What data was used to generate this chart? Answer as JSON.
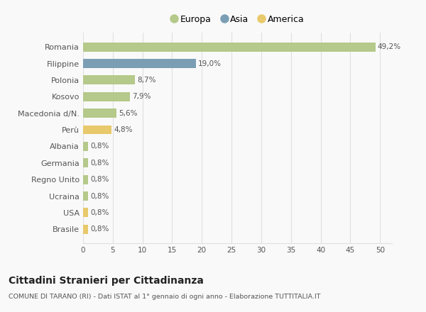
{
  "categories": [
    "Romania",
    "Filippine",
    "Polonia",
    "Kosovo",
    "Macedonia d/N.",
    "Perù",
    "Albania",
    "Germania",
    "Regno Unito",
    "Ucraina",
    "USA",
    "Brasile"
  ],
  "values": [
    49.2,
    19.0,
    8.7,
    7.9,
    5.6,
    4.8,
    0.8,
    0.8,
    0.8,
    0.8,
    0.8,
    0.8
  ],
  "labels": [
    "49,2%",
    "19,0%",
    "8,7%",
    "7,9%",
    "5,6%",
    "4,8%",
    "0,8%",
    "0,8%",
    "0,8%",
    "0,8%",
    "0,8%",
    "0,8%"
  ],
  "bar_colors": [
    "#b5c98a",
    "#7b9eb5",
    "#b5c98a",
    "#b5c98a",
    "#b5c98a",
    "#e8c96b",
    "#b5c98a",
    "#b5c98a",
    "#b5c98a",
    "#b5c98a",
    "#e8c96b",
    "#e8c96b"
  ],
  "legend_labels": [
    "Europa",
    "Asia",
    "America"
  ],
  "legend_colors": [
    "#b5c98a",
    "#7b9eb5",
    "#e8c96b"
  ],
  "xlim": [
    0,
    52
  ],
  "xticks": [
    0,
    5,
    10,
    15,
    20,
    25,
    30,
    35,
    40,
    45,
    50
  ],
  "title": "Cittadini Stranieri per Cittadinanza",
  "subtitle": "COMUNE DI TARANO (RI) - Dati ISTAT al 1° gennaio di ogni anno - Elaborazione TUTTITALIA.IT",
  "bg_color": "#f9f9f9",
  "grid_color": "#e0e0e0",
  "label_color": "#555555",
  "value_label_color": "#555555"
}
